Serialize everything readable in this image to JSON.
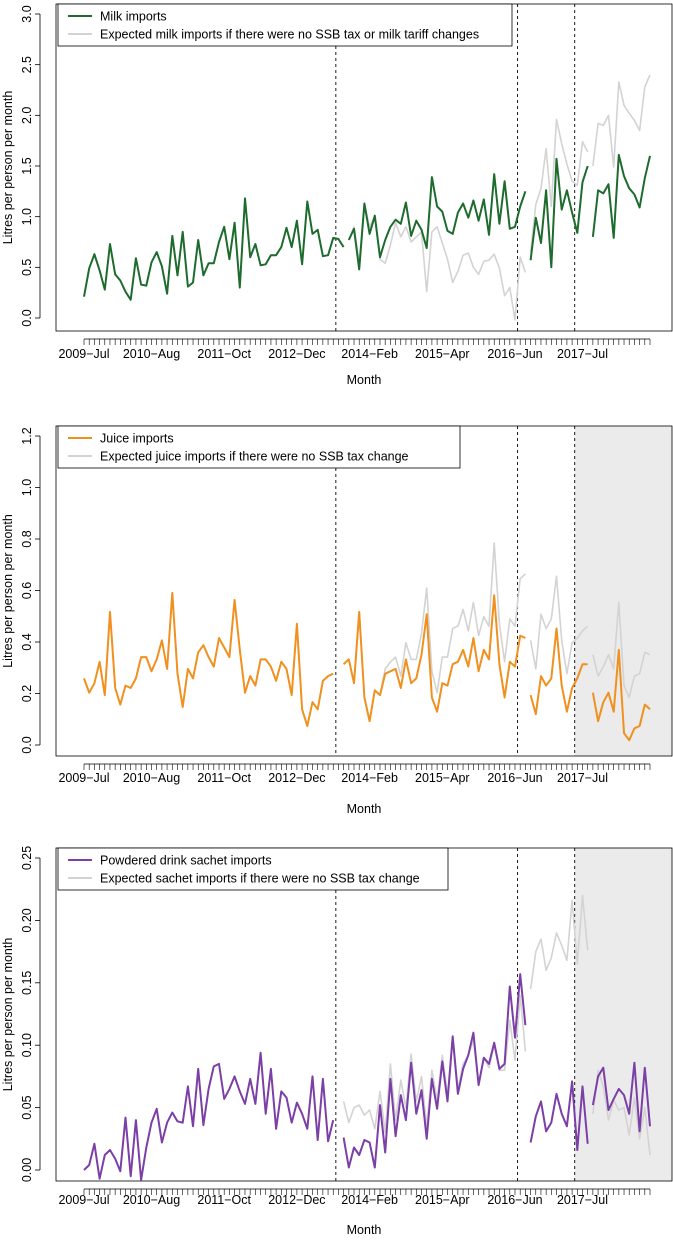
{
  "chart_data": [
    {
      "type": "line",
      "ylabel": "Litres per person per month",
      "xlabel": "Month",
      "ylim": [
        0,
        3.0
      ],
      "yticks": [
        "0.0",
        "0.5",
        "1.0",
        "1.5",
        "2.0",
        "2.5",
        "3.0"
      ],
      "x_labels": [
        {
          "label": "2009−Jul",
          "month": 0
        },
        {
          "label": "2010−Aug",
          "month": 13
        },
        {
          "label": "2011−Oct",
          "month": 27
        },
        {
          "label": "2012−Dec",
          "month": 41
        },
        {
          "label": "2014−Feb",
          "month": 55
        },
        {
          "label": "2015−Apr",
          "month": 69
        },
        {
          "label": "2016−Jun",
          "month": 83
        },
        {
          "label": "2017−Jul",
          "month": 96
        }
      ],
      "vlines": [
        48.5,
        83.5,
        94.5
      ],
      "shade_from": null,
      "grid": false,
      "legend_position": "top-left",
      "series": [
        {
          "name": "Milk imports",
          "color": "#1e6b2e",
          "segments": [
            {
              "start": 0,
              "values": [
                0.21,
                0.49,
                0.63,
                0.47,
                0.28,
                0.73,
                0.43,
                0.37,
                0.26,
                0.18,
                0.59,
                0.33,
                0.32,
                0.55,
                0.65,
                0.51,
                0.24,
                0.81,
                0.42,
                0.85,
                0.31,
                0.35,
                0.77,
                0.42,
                0.54,
                0.54,
                0.75,
                0.9,
                0.58,
                0.94,
                0.3,
                1.18,
                0.6,
                0.73,
                0.52,
                0.53,
                0.62,
                0.62,
                0.7,
                0.89,
                0.7,
                0.96,
                0.53,
                1.15,
                0.83,
                0.87,
                0.61,
                0.62,
                0.79,
                0.78,
                0.7
              ]
            },
            {
              "start": 51,
              "values": [
                0.77,
                0.88,
                0.48,
                1.13,
                0.83,
                1.01,
                0.6,
                0.77,
                0.9,
                0.97,
                0.93,
                1.14,
                0.81,
                0.96,
                0.87,
                0.69,
                1.39,
                1.1,
                1.05,
                0.86,
                0.83,
                1.04,
                1.13,
                0.99,
                1.16,
                0.96,
                1.17,
                0.82,
                1.42,
                0.93,
                1.35,
                0.88,
                0.9,
                1.1,
                1.25
              ]
            },
            {
              "start": 86,
              "values": [
                0.57,
                0.99,
                0.74,
                1.26,
                0.5,
                1.57,
                1.07,
                1.26,
                1.04,
                0.84,
                1.34,
                1.5
              ]
            },
            {
              "start": 98,
              "values": [
                0.8,
                1.26,
                1.23,
                1.32,
                0.79,
                1.61,
                1.4,
                1.28,
                1.22,
                1.09,
                1.38,
                1.6
              ]
            }
          ]
        },
        {
          "name": "Expected milk imports if there were no SSB tax or milk tariff changes",
          "color": "#d3d3d3",
          "segments": [
            {
              "start": 51,
              "values": [
                0.77,
                0.9,
                0.55,
                1.13,
                0.9,
                1.0,
                0.58,
                0.54,
                0.72,
                0.94,
                0.8,
                0.9,
                0.75,
                0.8,
                0.85,
                0.26,
                0.85,
                0.9,
                0.74,
                0.58,
                0.35,
                0.46,
                0.62,
                0.64,
                0.5,
                0.43,
                0.56,
                0.57,
                0.63,
                0.49,
                0.22,
                0.3,
                -0.02,
                0.6,
                0.45
              ]
            },
            {
              "start": 86,
              "values": [
                0.65,
                1.12,
                1.28,
                1.67,
                1.1,
                1.96,
                1.72,
                1.52,
                1.35,
                1.31,
                1.74,
                1.64
              ]
            },
            {
              "start": 98,
              "values": [
                1.5,
                1.92,
                1.9,
                2.0,
                1.49,
                2.33,
                2.1,
                2.02,
                1.95,
                1.85,
                2.28,
                2.4
              ]
            }
          ]
        }
      ]
    },
    {
      "type": "line",
      "ylabel": "Litres per person per month",
      "xlabel": "Month",
      "ylim": [
        0,
        1.3
      ],
      "yticks": [
        "0.0",
        "0.2",
        "0.4",
        "0.6",
        "0.8",
        "1.0",
        "1.2"
      ],
      "x_labels": [
        {
          "label": "2009−Jul",
          "month": 0
        },
        {
          "label": "2010−Aug",
          "month": 13
        },
        {
          "label": "2011−Oct",
          "month": 27
        },
        {
          "label": "2012−Dec",
          "month": 41
        },
        {
          "label": "2014−Feb",
          "month": 55
        },
        {
          "label": "2015−Apr",
          "month": 69
        },
        {
          "label": "2016−Jun",
          "month": 83
        },
        {
          "label": "2017−Jul",
          "month": 96
        }
      ],
      "vlines": [
        48.5,
        83.5,
        94.5
      ],
      "shade_from": 94.5,
      "grid": false,
      "legend_position": "top-left",
      "series": [
        {
          "name": "Juice imports",
          "color": "#f0901f",
          "segments": [
            {
              "start": 0,
              "values": [
                0.28,
                0.22,
                0.26,
                0.35,
                0.21,
                0.56,
                0.24,
                0.17,
                0.25,
                0.24,
                0.28,
                0.37,
                0.37,
                0.31,
                0.36,
                0.44,
                0.32,
                0.64,
                0.3,
                0.16,
                0.32,
                0.28,
                0.39,
                0.42,
                0.37,
                0.33,
                0.45,
                0.41,
                0.37,
                0.61,
                0.4,
                0.22,
                0.29,
                0.25,
                0.36,
                0.36,
                0.33,
                0.27,
                0.35,
                0.32,
                0.21,
                0.51,
                0.15,
                0.08,
                0.18,
                0.15,
                0.27,
                0.29,
                0.3
              ]
            },
            {
              "start": 50,
              "values": [
                0.34,
                0.36,
                0.26,
                0.56,
                0.2,
                0.1,
                0.23,
                0.21,
                0.3,
                0.31,
                0.32,
                0.24,
                0.36,
                0.26,
                0.28,
                0.38,
                0.55,
                0.2,
                0.14,
                0.26,
                0.25,
                0.34,
                0.35,
                0.4,
                0.33,
                0.45,
                0.31,
                0.4,
                0.36,
                0.63,
                0.34,
                0.2,
                0.35,
                0.33,
                0.46,
                0.45
              ]
            },
            {
              "start": 86,
              "values": [
                0.21,
                0.13,
                0.29,
                0.25,
                0.28,
                0.49,
                0.25,
                0.14,
                0.24,
                0.28,
                0.34,
                0.34
              ]
            },
            {
              "start": 98,
              "values": [
                0.22,
                0.1,
                0.18,
                0.22,
                0.14,
                0.4,
                0.05,
                0.02,
                0.07,
                0.08,
                0.17,
                0.15
              ]
            }
          ]
        },
        {
          "name": "Expected juice imports if there were no SSB tax change",
          "color": "#d3d3d3",
          "segments": [
            {
              "start": 50,
              "values": [
                0.34,
                0.36,
                0.26,
                0.56,
                0.2,
                0.1,
                0.23,
                0.21,
                0.32,
                0.35,
                0.37,
                0.29,
                0.43,
                0.36,
                0.36,
                0.47,
                0.66,
                0.31,
                0.22,
                0.37,
                0.37,
                0.49,
                0.5,
                0.57,
                0.48,
                0.6,
                0.46,
                0.54,
                0.5,
                0.85,
                0.51,
                0.35,
                0.53,
                0.5,
                0.7,
                0.72
              ]
            },
            {
              "start": 86,
              "values": [
                0.44,
                0.32,
                0.55,
                0.49,
                0.53,
                0.71,
                0.44,
                0.3,
                0.43,
                0.45,
                0.48,
                0.5
              ]
            },
            {
              "start": 98,
              "values": [
                0.38,
                0.29,
                0.33,
                0.38,
                0.32,
                0.6,
                0.25,
                0.2,
                0.29,
                0.3,
                0.39,
                0.38
              ]
            }
          ]
        }
      ]
    },
    {
      "type": "line",
      "ylabel": "Litres per person per month",
      "xlabel": "Month",
      "ylim": [
        0,
        0.25
      ],
      "yticks": [
        "0.00",
        "0.05",
        "0.10",
        "0.15",
        "0.20",
        "0.25"
      ],
      "x_labels": [
        {
          "label": "2009−Jul",
          "month": 0
        },
        {
          "label": "2010−Aug",
          "month": 13
        },
        {
          "label": "2011−Oct",
          "month": 27
        },
        {
          "label": "2012−Dec",
          "month": 41
        },
        {
          "label": "2014−Feb",
          "month": 55
        },
        {
          "label": "2015−Apr",
          "month": 69
        },
        {
          "label": "2016−Jun",
          "month": 83
        },
        {
          "label": "2017−Jul",
          "month": 96
        }
      ],
      "vlines": [
        48.5,
        83.5,
        94.5
      ],
      "shade_from": 94.5,
      "grid": false,
      "legend_position": "top-left",
      "series": [
        {
          "name": "Powdered drink sachet imports",
          "color": "#7b3fa6",
          "segments": [
            {
              "start": 0,
              "values": [
                0.0,
                0.004,
                0.021,
                -0.007,
                0.012,
                0.016,
                0.009,
                -0.001,
                0.042,
                -0.005,
                0.04,
                -0.008,
                0.018,
                0.038,
                0.049,
                0.022,
                0.038,
                0.046,
                0.039,
                0.038,
                0.067,
                0.035,
                0.081,
                0.036,
                0.065,
                0.083,
                0.085,
                0.057,
                0.065,
                0.075,
                0.063,
                0.053,
                0.073,
                0.053,
                0.094,
                0.045,
                0.081,
                0.033,
                0.063,
                0.058,
                0.038,
                0.054,
                0.045,
                0.033,
                0.075,
                0.024,
                0.073,
                0.023,
                0.04
              ]
            },
            {
              "start": 50,
              "values": [
                0.026,
                0.002,
                0.018,
                0.012,
                0.024,
                0.022,
                0.002,
                0.052,
                0.014,
                0.073,
                0.027,
                0.06,
                0.04,
                0.086,
                0.045,
                0.064,
                0.025,
                0.073,
                0.049,
                0.087,
                0.055,
                0.107,
                0.061,
                0.081,
                0.092,
                0.11,
                0.068,
                0.09,
                0.085,
                0.102,
                0.081,
                0.085,
                0.147,
                0.106,
                0.157,
                0.116
              ]
            },
            {
              "start": 86,
              "values": [
                0.022,
                0.043,
                0.055,
                0.031,
                0.038,
                0.061,
                0.045,
                0.035,
                0.071,
                0.016,
                0.067,
                0.021
              ]
            },
            {
              "start": 98,
              "values": [
                0.052,
                0.075,
                0.082,
                0.048,
                0.057,
                0.065,
                0.06,
                0.045,
                0.086,
                0.031,
                0.082,
                0.035
              ]
            }
          ]
        },
        {
          "name": "Expected sachet imports if there were no SSB tax change",
          "color": "#d3d3d3",
          "segments": [
            {
              "start": 50,
              "values": [
                0.055,
                0.038,
                0.05,
                0.052,
                0.044,
                0.048,
                0.033,
                0.063,
                0.03,
                0.085,
                0.04,
                0.072,
                0.05,
                0.093,
                0.055,
                0.075,
                0.035,
                0.08,
                0.056,
                0.092,
                0.06,
                0.108,
                0.065,
                0.085,
                0.092,
                0.104,
                0.07,
                0.09,
                0.082,
                0.1,
                0.08,
                0.08,
                0.12,
                0.088,
                0.14,
                0.095
              ]
            },
            {
              "start": 86,
              "values": [
                0.145,
                0.175,
                0.185,
                0.16,
                0.17,
                0.19,
                0.18,
                0.168,
                0.216,
                0.165,
                0.22,
                0.176
              ]
            },
            {
              "start": 98,
              "values": [
                0.045,
                0.08,
                0.067,
                0.04,
                0.056,
                0.048,
                0.05,
                0.028,
                0.058,
                0.025,
                0.05,
                0.012
              ]
            }
          ]
        }
      ]
    }
  ]
}
